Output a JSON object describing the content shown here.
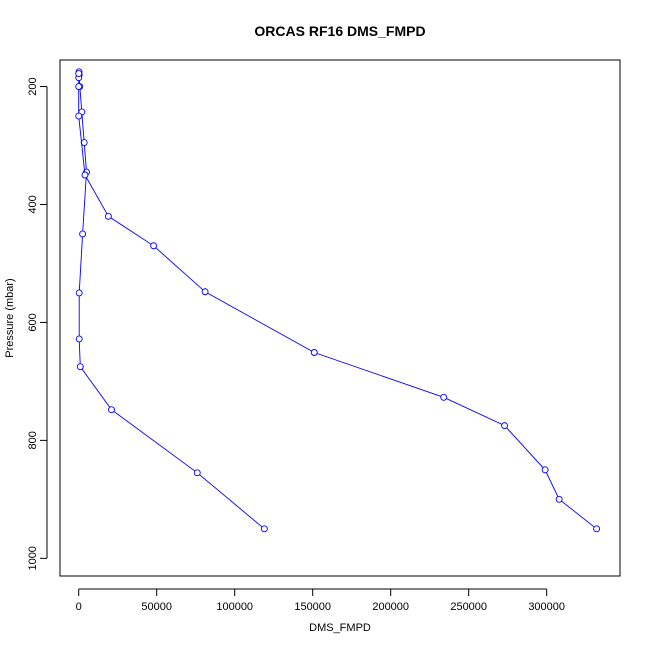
{
  "chart_data": {
    "type": "line",
    "title": "ORCAS RF16 DMS_FMPD",
    "xlabel": "DMS_FMPD",
    "ylabel": "Pressure (mbar)",
    "xlim": [
      -12000,
      347000
    ],
    "ylim": [
      1030,
      155
    ],
    "y_reversed": true,
    "grid": false,
    "xticks": [
      0,
      50000,
      100000,
      150000,
      200000,
      250000,
      300000
    ],
    "xtick_labels": [
      "0",
      "50000",
      "100000",
      "150000",
      "200000",
      "250000",
      "300000"
    ],
    "yticks": [
      200,
      400,
      600,
      800,
      1000
    ],
    "ytick_labels": [
      "200",
      "400",
      "600",
      "800",
      "1000"
    ],
    "series_color": "#0000ff",
    "series": [
      {
        "points": [
          [
            119000,
            950
          ],
          [
            76000,
            855
          ],
          [
            21000,
            748
          ],
          [
            1000,
            675
          ],
          [
            300,
            628
          ],
          [
            300,
            550
          ],
          [
            2500,
            450
          ],
          [
            5000,
            345
          ],
          [
            3500,
            295
          ],
          [
            2000,
            243
          ],
          [
            700,
            200
          ],
          [
            300,
            180
          ],
          [
            200,
            175
          ]
        ]
      },
      {
        "points": [
          [
            332000,
            950
          ],
          [
            308000,
            900
          ],
          [
            299000,
            850
          ],
          [
            273000,
            775
          ],
          [
            234000,
            727
          ],
          [
            151000,
            651
          ],
          [
            81000,
            548
          ],
          [
            48000,
            470
          ],
          [
            19000,
            420
          ],
          [
            4000,
            350
          ],
          [
            0,
            250
          ],
          [
            0,
            200
          ],
          [
            0,
            185
          ],
          [
            0,
            178
          ]
        ]
      }
    ]
  }
}
